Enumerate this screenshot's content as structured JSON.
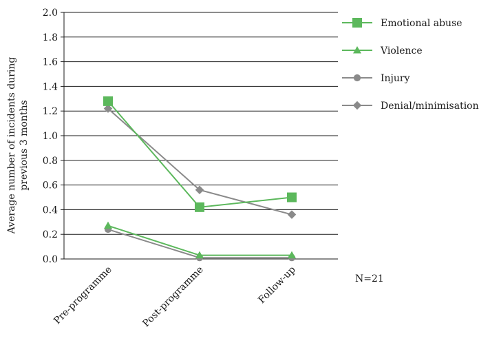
{
  "chart_data": {
    "type": "line",
    "title": "",
    "xlabel": "",
    "ylabel": "Average number of incidents during previous 3 months",
    "ylabel_lines": [
      "Average number of incidents during",
      "previous 3 months"
    ],
    "categories": [
      "Pre-programme",
      "Post-programme",
      "Follow-up"
    ],
    "ylim": [
      0,
      2.0
    ],
    "yticks": [
      0.0,
      0.2,
      0.4,
      0.6,
      0.8,
      1.0,
      1.2,
      1.4,
      1.6,
      1.8,
      2.0
    ],
    "ytick_labels": [
      "0.0",
      "0.2",
      "0.4",
      "0.6",
      "0.8",
      "1.0",
      "1.2",
      "1.4",
      "1.6",
      "1.8",
      "2.0"
    ],
    "grid": true,
    "legend_position": "right",
    "series": [
      {
        "name": "Emotional abuse",
        "values": [
          1.28,
          0.42,
          0.5
        ],
        "color": "#5cb85c",
        "marker": "square"
      },
      {
        "name": "Violence",
        "values": [
          0.27,
          0.03,
          0.03
        ],
        "color": "#5cb85c",
        "marker": "triangle"
      },
      {
        "name": "Injury",
        "values": [
          0.24,
          0.01,
          0.01
        ],
        "color": "#8a8a8a",
        "marker": "circle"
      },
      {
        "name": "Denial/minimisation",
        "values": [
          1.22,
          0.56,
          0.36
        ],
        "color": "#8a8a8a",
        "marker": "diamond"
      }
    ],
    "annotations": [
      "N=21"
    ]
  }
}
